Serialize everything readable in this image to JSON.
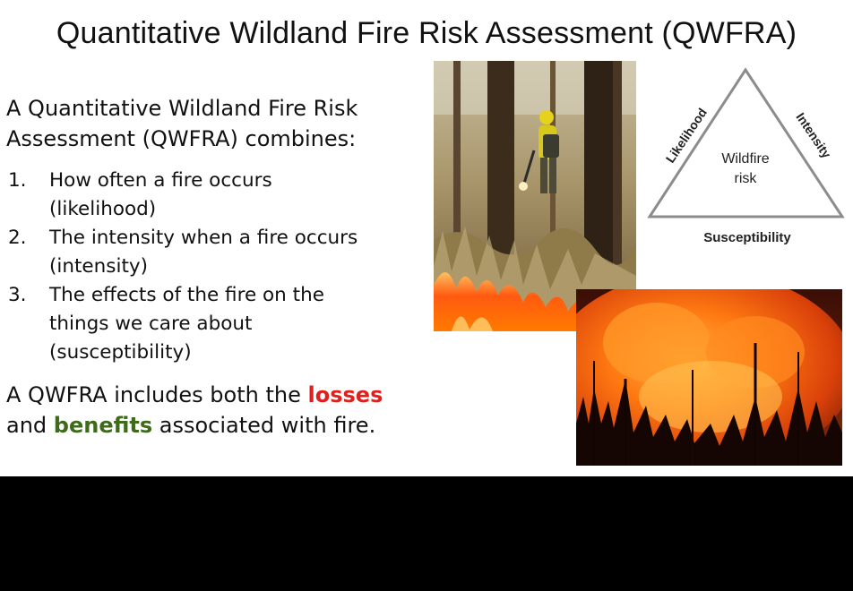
{
  "slide": {
    "title": "Quantitative Wildland Fire Risk Assessment (QWFRA)",
    "intro_line1": "A Quantitative Wildland Fire Risk",
    "intro_line2": "Assessment (QWFRA) combines:",
    "list": [
      {
        "number": "1.",
        "line1": "How often a fire occurs",
        "line2": "(likelihood)"
      },
      {
        "number": "2.",
        "line1": "The intensity when a fire occurs",
        "line2": "(intensity)"
      },
      {
        "number": "3.",
        "line1": "The effects of the fire on the",
        "line2": "things we care about",
        "line3": "(susceptibility)"
      }
    ],
    "summary": {
      "part1": "A QWFRA includes both the ",
      "losses": "losses",
      "part2": "and ",
      "benefits": "benefits",
      "part3": " associated with fire."
    },
    "triangle": {
      "left_side": "Likelihood",
      "right_side": "Intensity",
      "bottom": "Susceptibility",
      "center_line1": "Wildfire",
      "center_line2": "risk"
    },
    "colors": {
      "losses": "#e0201c",
      "benefits": "#3d6b1a",
      "triangle_stroke": "#8c8c8c"
    }
  }
}
